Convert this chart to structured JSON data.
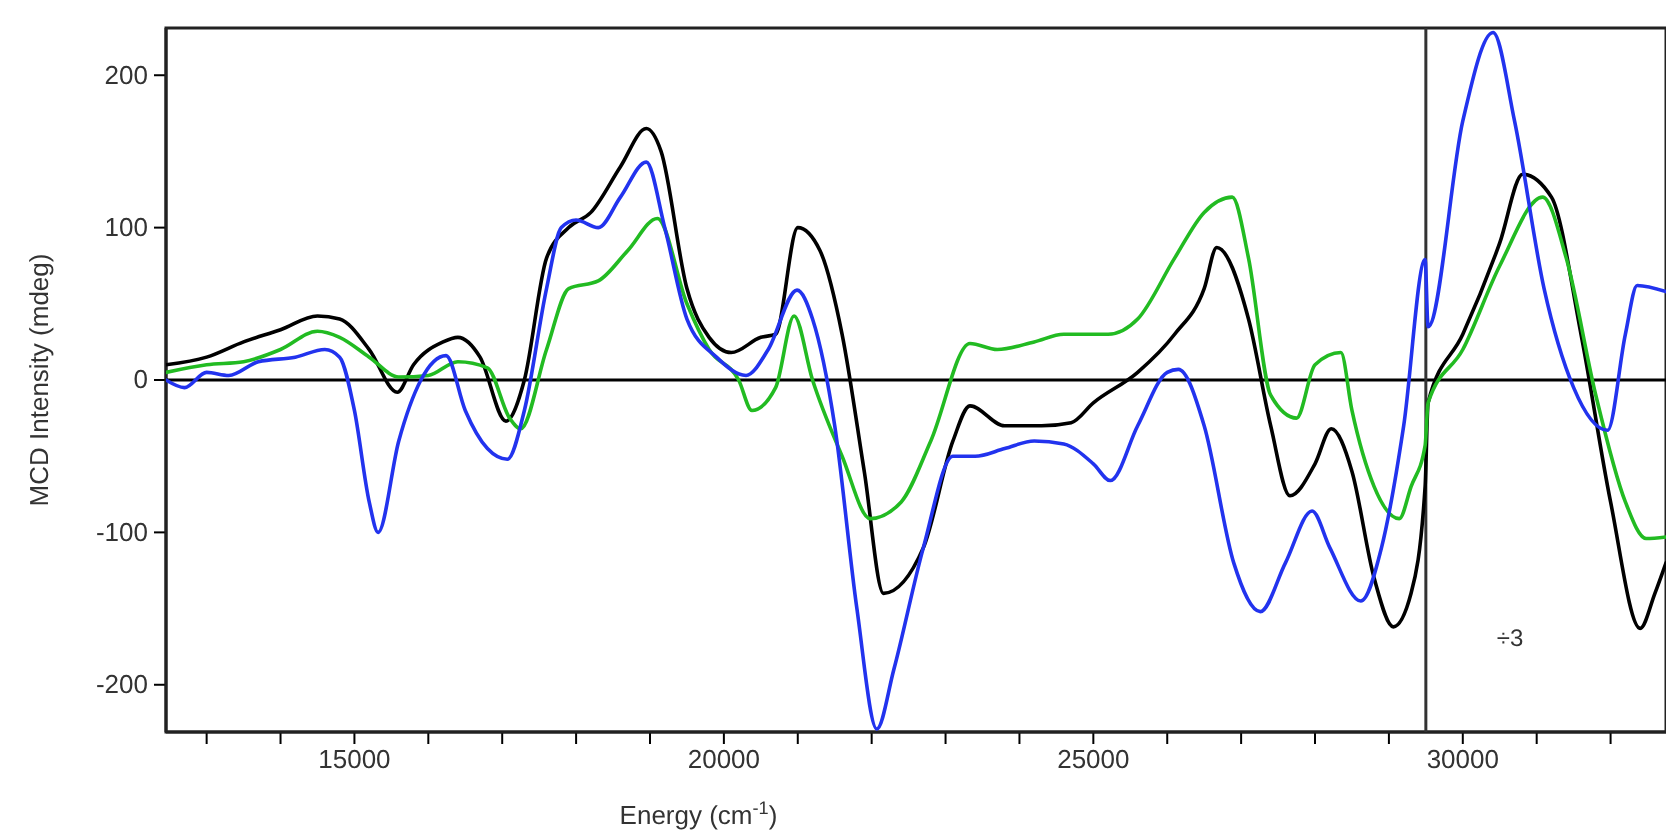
{
  "chart_data": {
    "type": "line",
    "xlabel": "Energy (cm$^{-1}$)",
    "ylabel": "MCD Intensity (mdeg)",
    "xlim": [
      12450,
      32750
    ],
    "ylim": [
      -231,
      231
    ],
    "xticks": [
      {
        "value": 13000,
        "label": null
      },
      {
        "value": 14000,
        "label": null
      },
      15000,
      {
        "value": 16000,
        "label": null
      },
      {
        "value": 17000,
        "label": null
      },
      {
        "value": 18000,
        "label": null
      },
      {
        "value": 19000,
        "label": null
      },
      20000,
      {
        "value": 21000,
        "label": null
      },
      {
        "value": 22000,
        "label": null
      },
      {
        "value": 23000,
        "label": null
      },
      {
        "value": 24000,
        "label": null
      },
      25000,
      {
        "value": 26000,
        "label": null
      },
      {
        "value": 27000,
        "label": null
      },
      {
        "value": 28000,
        "label": null
      },
      {
        "value": 29000,
        "label": null
      },
      30000,
      {
        "value": 31000,
        "label": null
      },
      {
        "value": 32000,
        "label": null
      }
    ],
    "yticks": [
      -200,
      -100,
      0,
      100,
      200
    ],
    "grid": false,
    "marker": "none",
    "line_style": "solid",
    "ref_lines": [
      {
        "axis": "y",
        "value": 0,
        "color": "#000000"
      },
      {
        "axis": "x",
        "value": 29500,
        "color": "#333333"
      }
    ],
    "annotations": [
      "÷3"
    ],
    "series": [
      {
        "color": "#000000",
        "x": [
          12450,
          13000,
          13500,
          14000,
          14500,
          14800,
          15200,
          15580,
          15800,
          16200,
          16400,
          16700,
          17050,
          17300,
          17600,
          17900,
          18200,
          18600,
          18950,
          19150,
          19500,
          19800,
          20100,
          20500,
          20700,
          21000,
          21300,
          21600,
          21900,
          22160,
          22700,
          23100,
          23330,
          23800,
          24300,
          24700,
          25000,
          25600,
          26100,
          26500,
          26670,
          27100,
          27400,
          27660,
          28000,
          28220,
          28500,
          28800,
          29060,
          29300,
          29490,
          29530,
          30000,
          30500,
          30810,
          31200,
          31600,
          32000,
          32400,
          32600,
          32750
        ],
        "values": [
          10,
          15,
          25,
          33,
          42,
          40,
          20,
          -8,
          10,
          25,
          28,
          15,
          -27,
          0,
          80,
          100,
          110,
          140,
          165,
          150,
          60,
          28,
          18,
          28,
          30,
          100,
          85,
          30,
          -60,
          -140,
          -110,
          -40,
          -17,
          -30,
          -30,
          -28,
          -15,
          5,
          30,
          60,
          87,
          40,
          -30,
          -76,
          -55,
          -32,
          -60,
          -130,
          -162,
          -140,
          -70,
          -15,
          30,
          90,
          135,
          120,
          30,
          -80,
          -163,
          -140,
          -120
        ]
      },
      {
        "color": "#22bb22",
        "x": [
          12450,
          13000,
          13500,
          14000,
          14500,
          14800,
          15200,
          15600,
          16000,
          16400,
          16800,
          17100,
          17250,
          17600,
          17900,
          18300,
          18700,
          19100,
          19500,
          19800,
          20200,
          20380,
          20700,
          20950,
          21200,
          21600,
          21980,
          22400,
          22800,
          23330,
          23700,
          24200,
          24600,
          25200,
          25600,
          26100,
          26500,
          26880,
          27100,
          27400,
          27750,
          28000,
          28350,
          28500,
          28800,
          29140,
          29300,
          29490,
          29530,
          30000,
          30500,
          31080,
          31400,
          31800,
          32200,
          32480,
          32750
        ],
        "values": [
          5,
          10,
          12,
          20,
          32,
          28,
          15,
          2,
          3,
          12,
          8,
          -25,
          -32,
          20,
          60,
          65,
          85,
          106,
          50,
          20,
          0,
          -20,
          -5,
          42,
          0,
          -50,
          -91,
          -80,
          -40,
          24,
          20,
          25,
          30,
          30,
          40,
          80,
          110,
          120,
          80,
          -10,
          -25,
          10,
          18,
          -20,
          -70,
          -91,
          -70,
          -43,
          -15,
          20,
          75,
          120,
          80,
          -10,
          -80,
          -104,
          -103
        ]
      },
      {
        "color": "#2233ee",
        "x": [
          12450,
          12700,
          13000,
          13300,
          13700,
          14200,
          14600,
          14800,
          15000,
          15200,
          15320,
          15600,
          15900,
          16240,
          16500,
          16800,
          17070,
          17300,
          17600,
          17800,
          18000,
          18300,
          18600,
          18950,
          19200,
          19500,
          19900,
          20300,
          20600,
          20990,
          21200,
          21500,
          21800,
          22070,
          22300,
          22700,
          23100,
          23400,
          23800,
          24200,
          24600,
          25000,
          25230,
          25600,
          26000,
          26150,
          26500,
          26900,
          27260,
          27600,
          27960,
          28200,
          28620,
          28900,
          29200,
          29490,
          29530,
          30000,
          30410,
          30700,
          31100,
          31500,
          31960,
          32200,
          32360,
          32750
        ],
        "values": [
          0,
          -5,
          5,
          3,
          12,
          15,
          20,
          15,
          -20,
          -80,
          -100,
          -40,
          0,
          16,
          -20,
          -45,
          -52,
          -20,
          60,
          100,
          105,
          100,
          120,
          143,
          100,
          40,
          15,
          3,
          20,
          59,
          40,
          -30,
          -150,
          -229,
          -190,
          -110,
          -50,
          -50,
          -45,
          -40,
          -42,
          -55,
          -66,
          -30,
          5,
          7,
          -30,
          -120,
          -152,
          -120,
          -86,
          -110,
          -145,
          -110,
          -30,
          79,
          35,
          170,
          228,
          170,
          60,
          -5,
          -33,
          30,
          62,
          58
        ]
      }
    ]
  }
}
